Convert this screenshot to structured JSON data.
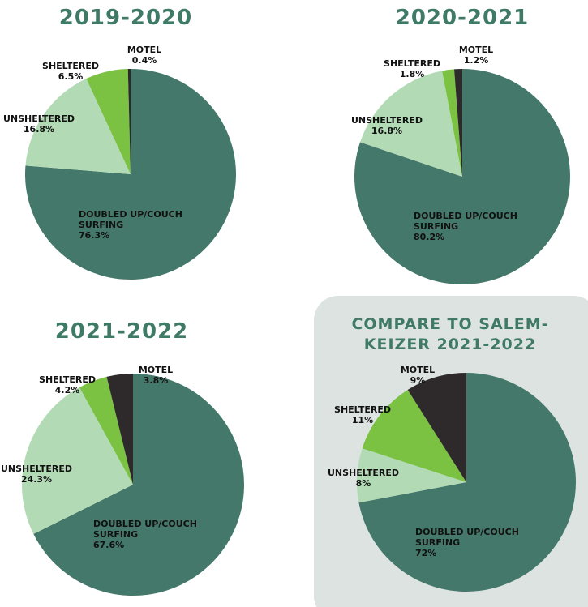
{
  "chart_data": [
    {
      "type": "pie",
      "title": "2019-2020",
      "categories": [
        "DOUBLED UP/COUCH SURFING",
        "UNSHELTERED",
        "SHELTERED",
        "MOTEL"
      ],
      "values": [
        76.3,
        16.8,
        6.5,
        0.4
      ],
      "value_labels": [
        "76.3%",
        "16.8%",
        "6.5%",
        "0.4%"
      ],
      "colors": [
        "#44786a",
        "#b2dbb5",
        "#7bc142",
        "#2e2a2b"
      ]
    },
    {
      "type": "pie",
      "title": "2020-2021",
      "categories": [
        "DOUBLED UP/COUCH SURFING",
        "UNSHELTERED",
        "SHELTERED",
        "MOTEL"
      ],
      "values": [
        80.2,
        16.8,
        1.8,
        1.2
      ],
      "value_labels": [
        "80.2%",
        "16.8%",
        "1.8%",
        "1.2%"
      ],
      "colors": [
        "#44786a",
        "#b2dbb5",
        "#7bc142",
        "#2e2a2b"
      ]
    },
    {
      "type": "pie",
      "title": "2021-2022",
      "categories": [
        "DOUBLED UP/COUCH SURFING",
        "UNSHELTERED",
        "SHELTERED",
        "MOTEL"
      ],
      "values": [
        67.6,
        24.3,
        4.2,
        3.8
      ],
      "value_labels": [
        "67.6%",
        "24.3%",
        "4.2%",
        "3.8%"
      ],
      "colors": [
        "#44786a",
        "#b2dbb5",
        "#7bc142",
        "#2e2a2b"
      ]
    },
    {
      "type": "pie",
      "title": "COMPARE TO SALEM-KEIZER 2021-2022",
      "categories": [
        "DOUBLED UP/COUCH SURFING",
        "UNSHELTERED",
        "SHELTERED",
        "MOTEL"
      ],
      "values": [
        72,
        8,
        11,
        9
      ],
      "value_labels": [
        "72%",
        "8%",
        "11%",
        "9%"
      ],
      "colors": [
        "#44786a",
        "#b2dbb5",
        "#7bc142",
        "#2e2a2b"
      ]
    }
  ]
}
